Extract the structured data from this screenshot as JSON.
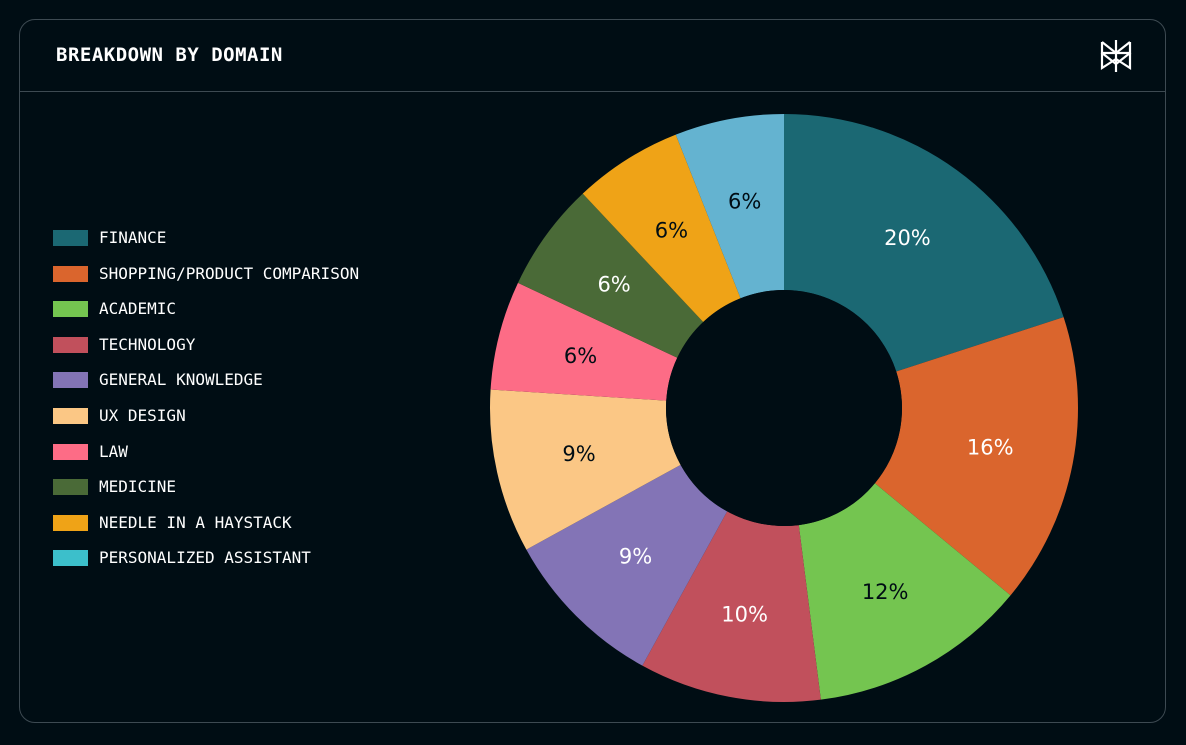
{
  "title": "BREAKDOWN BY DOMAIN",
  "logo": {
    "icon": "perplexity-logo-icon",
    "color": "#ffffff"
  },
  "chart_data": {
    "type": "pie",
    "variant": "donut",
    "legend_position": "left",
    "categories": [
      "FINANCE",
      "SHOPPING/PRODUCT COMPARISON",
      "ACADEMIC",
      "TECHNOLOGY",
      "GENERAL KNOWLEDGE",
      "UX DESIGN",
      "LAW",
      "MEDICINE",
      "NEEDLE IN A HAYSTACK",
      "PERSONALIZED ASSISTANT"
    ],
    "values": [
      20,
      16,
      12,
      10,
      9,
      9,
      6,
      6,
      6,
      6
    ],
    "labels": [
      "20%",
      "16%",
      "12%",
      "10%",
      "9%",
      "9%",
      "6%",
      "6%",
      "6%",
      "6%"
    ],
    "colors": [
      "#1b6873",
      "#da652d",
      "#74c550",
      "#c1505c",
      "#8374b6",
      "#fbc785",
      "#fd6c86",
      "#4a6a37",
      "#efa317",
      "#64b3d0"
    ],
    "legend_colors": [
      "#1b6873",
      "#da652d",
      "#74c550",
      "#c1505c",
      "#8374b6",
      "#fbc785",
      "#fd6c86",
      "#4a6a37",
      "#efa317",
      "#3cbfcb"
    ],
    "label_colors": [
      "#ffffff",
      "#ffffff",
      "#000d14",
      "#ffffff",
      "#ffffff",
      "#000d14",
      "#000d14",
      "#ffffff",
      "#000d14",
      "#000d14"
    ]
  }
}
